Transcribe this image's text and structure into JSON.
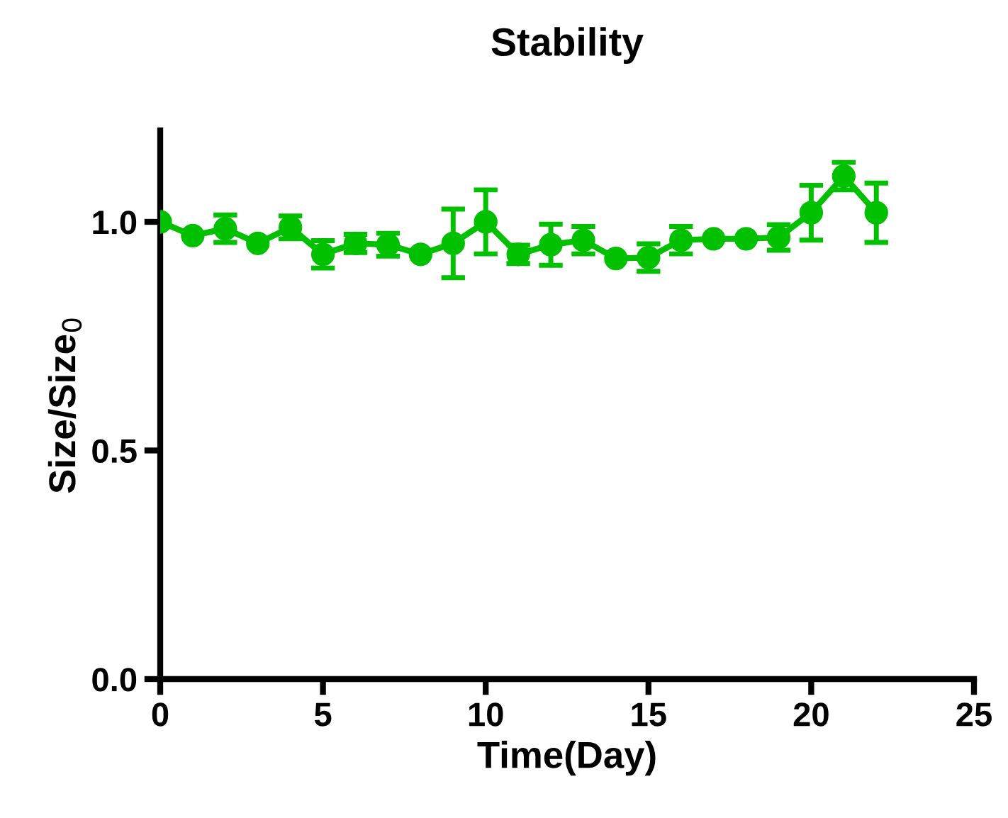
{
  "chart_data": {
    "type": "line",
    "title": "Stability",
    "xlabel": "Time(Day)",
    "ylabel": "Size/Size$_{0}$",
    "x": [
      0,
      1,
      2,
      3,
      4,
      5,
      6,
      7,
      8,
      9,
      10,
      11,
      12,
      13,
      14,
      15,
      16,
      17,
      18,
      19,
      20,
      21,
      22
    ],
    "series": [
      {
        "color": "#00c000",
        "values": [
          1.0,
          0.97,
          0.985,
          0.953,
          0.988,
          0.929,
          0.953,
          0.95,
          0.929,
          0.953,
          1.0,
          0.929,
          0.95,
          0.96,
          0.92,
          0.922,
          0.96,
          0.963,
          0.963,
          0.966,
          1.02,
          1.1,
          1.02
        ],
        "errors": [
          null,
          null,
          0.03,
          null,
          0.025,
          0.03,
          0.02,
          0.025,
          null,
          0.075,
          0.07,
          0.02,
          0.045,
          0.03,
          null,
          0.03,
          0.03,
          null,
          null,
          0.028,
          0.06,
          0.03,
          0.065
        ]
      }
    ],
    "xlim": [
      0,
      25
    ],
    "xticks": [
      0,
      5,
      10,
      15,
      20,
      25
    ],
    "ylim": [
      0,
      1.2
    ],
    "yticks": [
      {
        "value": 0,
        "label": "0.0"
      },
      0.5,
      {
        "value": 1,
        "label": "1.0"
      }
    ],
    "marker": "circle",
    "line_style": "solid",
    "grid": false,
    "legend": false
  }
}
